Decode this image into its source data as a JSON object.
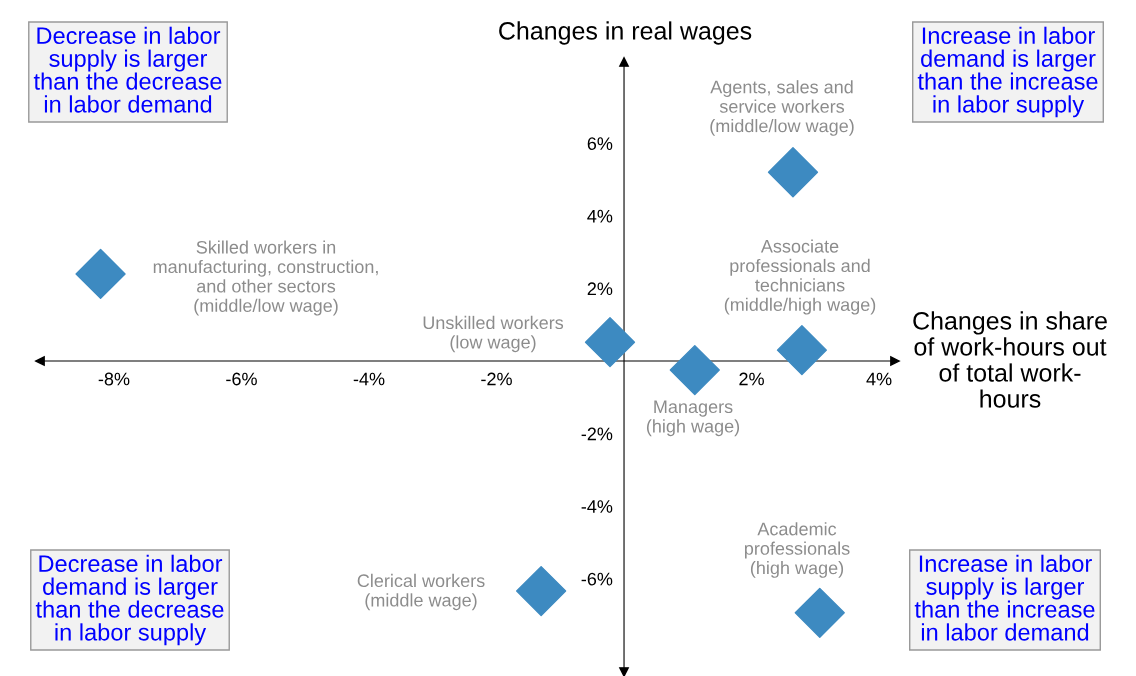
{
  "chart_data": {
    "type": "scatter",
    "xlabel": "Changes in share\nof work-hours out\nof total work-\nhours",
    "ylabel": "Changes in real wages",
    "x": [
      -8.21,
      -0.22,
      1.11,
      2.79,
      2.65,
      3.07,
      -1.3
    ],
    "series": [
      {
        "color": "#3d8ac1",
        "values": [
          2.4,
          0.52,
          -0.25,
          0.3,
          5.2,
          -6.94,
          -6.34
        ]
      }
    ],
    "marker": "diamond",
    "grid": false,
    "legend": false,
    "xlim": [
      -9.16,
      4.25
    ],
    "ylim": [
      -8.57,
      8.24
    ],
    "xticks": [
      {
        "value": -8,
        "label": "-8%"
      },
      {
        "value": -6,
        "label": "-6%"
      },
      {
        "value": -4,
        "label": "-4%"
      },
      {
        "value": -2,
        "label": "-2%"
      },
      {
        "value": 2,
        "label": "2%"
      },
      {
        "value": 4,
        "label": "4%"
      }
    ],
    "yticks": [
      {
        "value": -6,
        "label": "-6%"
      },
      {
        "value": -4,
        "label": "-4%"
      },
      {
        "value": -2,
        "label": "-2%"
      },
      {
        "value": 2,
        "label": "2%"
      },
      {
        "value": 4,
        "label": "4%"
      },
      {
        "value": 6,
        "label": "6%"
      }
    ],
    "annotations": [
      "Skilled workers in\nmanufacturing, construction,\nand other sectors\n(middle/low wage)",
      "Unskilled workers\n(low wage)",
      "Managers\n(high wage)",
      "Associate\nprofessionals and\ntechnicians\n(middle/high wage)",
      "Agents, sales and\nservice workers\n(middle/low wage)",
      "Academic\nprofessionals\n(high wage)",
      "Clerical workers\n(middle wage)",
      "Decrease in labor\nsupply is larger\nthan the decrease\nin labor demand",
      "Increase in labor\ndemand is larger\nthan the increase\nin labor supply",
      "Decrease in labor\ndemand is larger\nthan the decrease\nin labor supply",
      "Increase in labor\nsupply is larger\nthan the increase\nin labor demand"
    ]
  }
}
